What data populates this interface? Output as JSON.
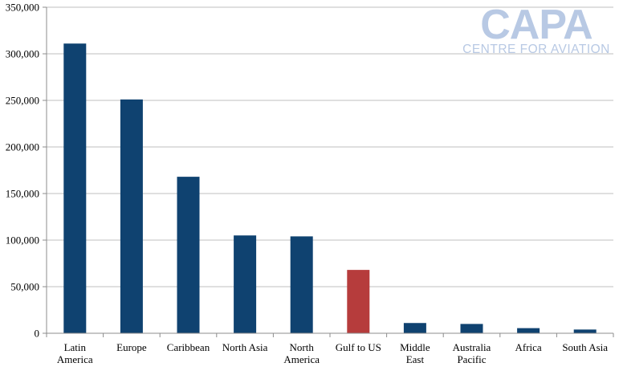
{
  "chart_data": {
    "type": "bar",
    "categories": [
      [
        "Latin",
        "America"
      ],
      [
        "Europe"
      ],
      [
        "Caribbean"
      ],
      [
        "North Asia"
      ],
      [
        "North",
        "America"
      ],
      [
        "Gulf  to US"
      ],
      [
        "Middle",
        "East"
      ],
      [
        "Australia",
        "Pacific"
      ],
      [
        "Africa"
      ],
      [
        "South Asia"
      ]
    ],
    "values": [
      311000,
      251000,
      168000,
      105000,
      104000,
      68000,
      11000,
      10000,
      5500,
      4000
    ],
    "bar_colors": [
      "#0f4270",
      "#0f4270",
      "#0f4270",
      "#0f4270",
      "#0f4270",
      "#b63c3c",
      "#0f4270",
      "#0f4270",
      "#0f4270",
      "#0f4270"
    ],
    "ylim": [
      0,
      350000
    ],
    "yticks": [
      0,
      50000,
      100000,
      150000,
      200000,
      250000,
      300000,
      350000
    ],
    "ytick_labels": [
      "0",
      "50,000",
      "100,000",
      "150,000",
      "200,000",
      "250,000",
      "300,000",
      "350,000"
    ],
    "grid": true,
    "title": "",
    "xlabel": "",
    "ylabel": ""
  },
  "watermark": {
    "main": "CAPA",
    "sub": "CENTRE FOR AVIATION",
    "color": "#b8c9e4"
  }
}
